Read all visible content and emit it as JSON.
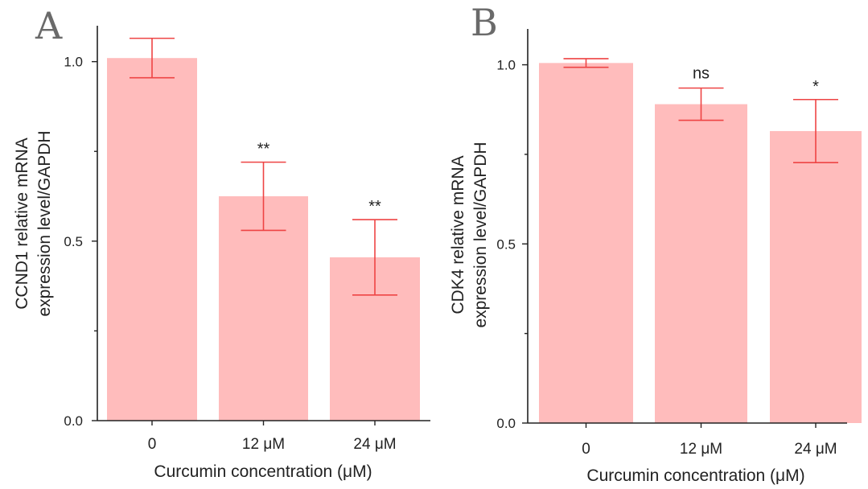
{
  "colors": {
    "bar_fill": "#ffbcbc",
    "error_bar": "#ee4444",
    "axis": "#222222"
  },
  "chart_data": [
    {
      "panel_label": "A",
      "type": "bar",
      "categories": [
        "0",
        "12 μM",
        "24 μM"
      ],
      "values": [
        1.01,
        0.625,
        0.455
      ],
      "errors": [
        0.055,
        0.095,
        0.105
      ],
      "significance": [
        "",
        "**",
        "**"
      ],
      "xlabel": "Curcumin concentration (μM)",
      "ylabel_lines": [
        "CCND1 relative mRNA",
        "expression level/GAPDH"
      ],
      "ylim": [
        0,
        1.1
      ],
      "yticks": [
        0.0,
        0.5,
        1.0
      ],
      "ytick_labels": [
        "0.0",
        "0.5",
        "1.0"
      ],
      "grid": false,
      "legend": "none"
    },
    {
      "panel_label": "B",
      "type": "bar",
      "categories": [
        "0",
        "12 μM",
        "24 μM"
      ],
      "values": [
        1.005,
        0.89,
        0.815
      ],
      "errors": [
        0.012,
        0.045,
        0.088
      ],
      "significance": [
        "",
        "ns",
        "*"
      ],
      "xlabel": "Curcumin concentration (μM)",
      "ylabel_lines": [
        "CDK4 relative mRNA",
        "expression level/GAPDH"
      ],
      "ylim": [
        0,
        1.1
      ],
      "yticks": [
        0.0,
        0.5,
        1.0
      ],
      "ytick_labels": [
        "0.0",
        "0.5",
        "1.0"
      ],
      "grid": false,
      "legend": "none"
    }
  ]
}
